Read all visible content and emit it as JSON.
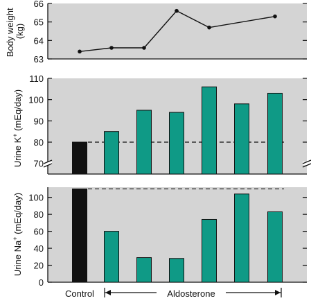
{
  "colors": {
    "panel_bg": "#d4d4d4",
    "control_bar": "#111111",
    "aldosterone_bar": "#0f9a86",
    "line": "#111111"
  },
  "chart_data": [
    {
      "type": "line",
      "panel": "body-weight",
      "ylabel": "Body weight (kg)",
      "ylim": [
        63,
        66
      ],
      "yticks": [
        "63",
        "64",
        "65",
        "66"
      ],
      "x": [
        1,
        2,
        3,
        4,
        5,
        6,
        7
      ],
      "values": [
        63.4,
        63.6,
        63.6,
        65.6,
        64.7,
        null,
        65.3
      ],
      "grid": false
    },
    {
      "type": "bar",
      "panel": "urine-k",
      "ylabel": "Urine K⁺ (mEq/day)",
      "ylim": [
        65,
        110
      ],
      "axis_break": true,
      "yticks": [
        "70",
        "80",
        "90",
        "100",
        "110"
      ],
      "reference_line": 80,
      "values": [
        80,
        85,
        95,
        94,
        106,
        98,
        103
      ],
      "bar_groups": [
        "Control",
        "Aldosterone",
        "Aldosterone",
        "Aldosterone",
        "Aldosterone",
        "Aldosterone",
        "Aldosterone"
      ],
      "grid": false
    },
    {
      "type": "bar",
      "panel": "urine-na",
      "ylabel": "Urine Na⁺ (mEq/day)",
      "ylim": [
        0,
        112
      ],
      "yticks": [
        "0",
        "20",
        "40",
        "60",
        "80",
        "100"
      ],
      "reference_line": 110,
      "values": [
        110,
        60,
        29,
        28,
        74,
        104,
        83
      ],
      "bar_groups": [
        "Control",
        "Aldosterone",
        "Aldosterone",
        "Aldosterone",
        "Aldosterone",
        "Aldosterone",
        "Aldosterone"
      ],
      "grid": false
    }
  ],
  "x_axis": {
    "control_label": "Control",
    "aldosterone_label": "Aldosterone"
  }
}
